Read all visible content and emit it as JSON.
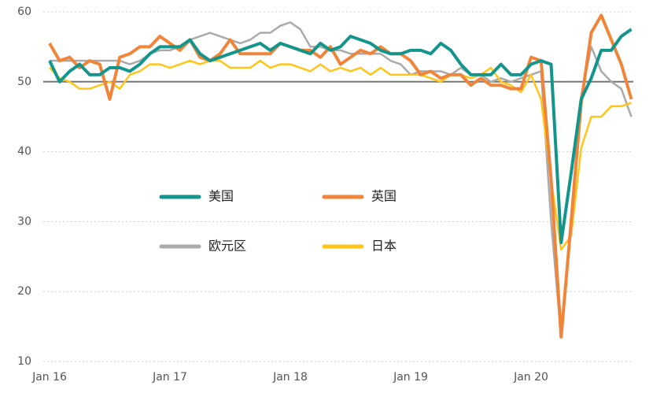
{
  "chart_data": {
    "type": "line",
    "categories": [
      "Jan 16",
      null,
      null,
      null,
      null,
      null,
      null,
      null,
      null,
      null,
      null,
      null,
      "Jan 17",
      null,
      null,
      null,
      null,
      null,
      null,
      null,
      null,
      null,
      null,
      null,
      "Jan 18",
      null,
      null,
      null,
      null,
      null,
      null,
      null,
      null,
      null,
      null,
      null,
      "Jan 19",
      null,
      null,
      null,
      null,
      null,
      null,
      null,
      null,
      null,
      null,
      null,
      "Jan 20",
      null,
      null,
      null,
      null,
      null,
      null,
      null,
      null,
      null,
      null
    ],
    "series": [
      {
        "name": "美国",
        "color": "#13958c",
        "values": [
          53,
          50,
          51.5,
          52.5,
          51,
          51,
          52,
          52,
          51.5,
          52.5,
          54,
          55,
          55,
          55,
          56,
          54,
          53,
          53.5,
          54,
          54.5,
          55,
          55.5,
          54.5,
          55.5,
          55,
          54.5,
          54,
          55.5,
          54.5,
          55,
          56.5,
          56,
          55.5,
          54.5,
          54,
          54,
          54.5,
          54.5,
          54,
          55.5,
          54.5,
          52.5,
          51,
          51,
          51,
          52.5,
          51,
          51,
          52.5,
          53,
          52.5,
          27,
          37,
          47.5,
          50.5,
          54.5,
          54.5,
          56.5,
          57.5
        ]
      },
      {
        "name": "英国",
        "color": "#f0853a",
        "values": [
          55.5,
          53,
          53.5,
          52,
          53,
          52.5,
          47.5,
          53.5,
          54,
          55,
          55,
          56.5,
          55.5,
          54.5,
          56,
          53.5,
          53,
          54,
          56,
          54,
          54,
          54,
          54,
          55.5,
          55,
          54.5,
          54.5,
          53.5,
          55,
          52.5,
          53.5,
          54.5,
          54,
          55,
          54,
          54,
          53,
          51,
          51.5,
          50.5,
          51,
          51,
          49.5,
          50.5,
          49.5,
          49.5,
          49,
          49,
          53.5,
          53,
          36,
          13.5,
          30,
          47,
          57,
          59.5,
          56,
          52.5,
          47.5
        ]
      },
      {
        "name": "欧元区",
        "color": "#aaaaaa",
        "values": [
          53,
          53,
          53,
          53,
          53,
          53,
          53,
          53,
          52.5,
          53,
          54,
          54.5,
          54.5,
          55,
          56,
          56.5,
          57,
          56.5,
          56,
          55.5,
          56,
          57,
          57,
          58,
          58.5,
          57.5,
          55,
          55,
          54.5,
          54.5,
          54,
          54,
          54,
          54,
          53,
          52.5,
          51,
          51.5,
          51.5,
          51.5,
          51,
          52,
          51,
          51,
          50,
          50.5,
          50,
          50.5,
          51,
          51.5,
          30,
          13.5,
          31,
          48,
          55,
          51.5,
          50,
          49,
          45
        ]
      },
      {
        "name": "日本",
        "color": "#ffc519",
        "values": [
          52,
          50.5,
          50,
          49,
          49,
          49.5,
          50,
          49,
          51,
          51.5,
          52.5,
          52.5,
          52,
          52.5,
          53,
          52.5,
          53,
          53,
          52,
          52,
          52,
          53,
          52,
          52.5,
          52.5,
          52,
          51.5,
          52.5,
          51.5,
          52,
          51.5,
          52,
          51,
          52,
          51,
          51,
          51,
          51,
          50.5,
          50,
          51,
          51,
          50.5,
          51,
          52,
          50,
          49.5,
          48.5,
          51,
          47.5,
          36,
          26,
          28,
          40.5,
          45,
          45,
          46.5,
          46.5,
          47
        ]
      }
    ],
    "ylim": [
      10,
      60
    ],
    "yticks": [
      10,
      20,
      30,
      40,
      50,
      60
    ],
    "grid": true,
    "reference_line": 50
  }
}
